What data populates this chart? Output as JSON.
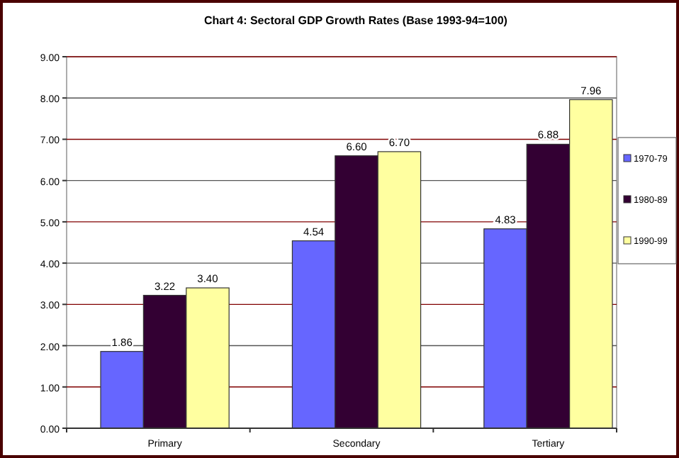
{
  "chart_data": {
    "type": "bar",
    "title": "Chart 4: Sectoral GDP Growth Rates (Base 1993-94=100)",
    "categories": [
      "Primary",
      "Secondary",
      "Tertiary"
    ],
    "series": [
      {
        "name": "1970-79",
        "color": "#6666ff",
        "values": [
          1.86,
          4.54,
          4.83
        ],
        "value_labels": [
          "1.86",
          "4.54",
          "4.83"
        ]
      },
      {
        "name": "1980-89",
        "color": "#330033",
        "values": [
          3.22,
          6.6,
          6.88
        ],
        "value_labels": [
          "3.22",
          "6.60",
          "6.88"
        ]
      },
      {
        "name": "1990-99",
        "color": "#ffffa0",
        "values": [
          3.4,
          6.7,
          7.96
        ],
        "value_labels": [
          "3.40",
          "6.70",
          "7.96"
        ]
      }
    ],
    "ylim": [
      0,
      9
    ],
    "yticks": [
      {
        "value": 0,
        "label": "0.00"
      },
      {
        "value": 1,
        "label": "1.00"
      },
      {
        "value": 2,
        "label": "2.00"
      },
      {
        "value": 3,
        "label": "3.00"
      },
      {
        "value": 4,
        "label": "4.00"
      },
      {
        "value": 5,
        "label": "5.00"
      },
      {
        "value": 6,
        "label": "6.00"
      },
      {
        "value": 7,
        "label": "7.00"
      },
      {
        "value": 8,
        "label": "8.00"
      },
      {
        "value": 9,
        "label": "9.00"
      }
    ],
    "grid": "y",
    "legend": "right"
  }
}
